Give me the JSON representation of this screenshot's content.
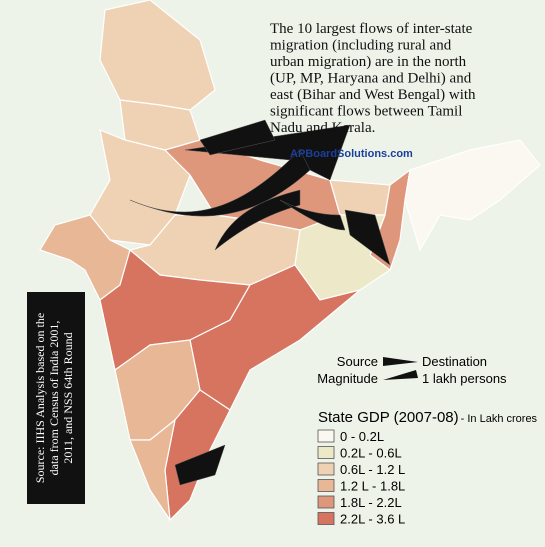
{
  "annotation": [
    "The 10 largest flows of inter-state",
    "migration  (including rural and",
    "urban migration) are in the north",
    "(UP, MP, Haryana and Delhi) and",
    "east (Bihar and West Bengal) with",
    "significant flows between Tamil",
    "Nadu and Kerala."
  ],
  "watermark": "APBoardSolutions.com",
  "source_note": [
    "Source: IIHS Analysis based on the",
    "data from Census of India 2001,",
    "2011, and NSS 64th Round"
  ],
  "flow_legend": {
    "source": "Source",
    "destination": "Destination",
    "magnitude": "Magnitude",
    "magnitude_unit": "1 lakh persons"
  },
  "gdp_legend": {
    "title": "State GDP (2007-08)",
    "unit": "- In Lakh crores",
    "classes": [
      {
        "label": "0 - 0.2L",
        "color": "#fbf8f1"
      },
      {
        "label": "0.2L - 0.6L",
        "color": "#ece8c8"
      },
      {
        "label": "0.6L - 1.2 L",
        "color": "#efd1b4"
      },
      {
        "label": "1.2 L - 1.8L",
        "color": "#e8b796"
      },
      {
        "label": "1.8L - 2.2L",
        "color": "#df977b"
      },
      {
        "label": "2.2L - 3.6 L",
        "color": "#d7745f"
      }
    ]
  }
}
